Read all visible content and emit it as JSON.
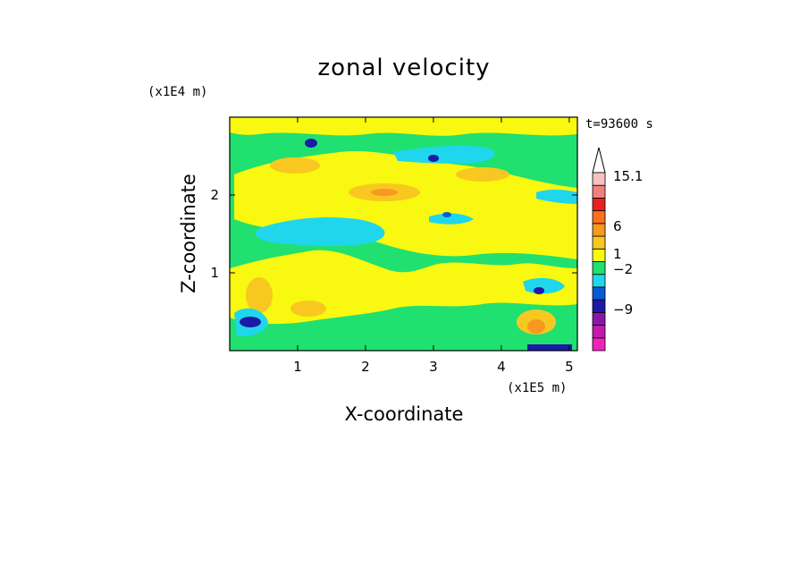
{
  "chart_data": {
    "type": "heatmap",
    "title": "zonal velocity",
    "xlabel": "X-coordinate",
    "ylabel": "Z-coordinate",
    "x_unit": "(x1E5 m)",
    "y_unit": "(x1E4 m)",
    "time_label": "t=93600 s",
    "xlim": [
      0,
      5.12
    ],
    "ylim": [
      0,
      3.0
    ],
    "xticks": [
      1,
      2,
      3,
      4,
      5
    ],
    "xtick_labels": [
      "1",
      "2",
      "3",
      "4",
      "5"
    ],
    "yticks": [
      1,
      2
    ],
    "ytick_labels": [
      "1",
      "2"
    ],
    "colorbar": {
      "levels": [
        {
          "color": "#ef23b9"
        },
        {
          "color": "#c21aac"
        },
        {
          "color": "#8a16a8"
        },
        {
          "color": "#1c1aa8"
        },
        {
          "color": "#0a5ad6"
        },
        {
          "color": "#20d6ec"
        },
        {
          "color": "#20e070"
        },
        {
          "color": "#f8f810"
        },
        {
          "color": "#f8c820"
        },
        {
          "color": "#f89820"
        },
        {
          "color": "#f87020"
        },
        {
          "color": "#e82020"
        },
        {
          "color": "#f08080"
        },
        {
          "color": "#f8c0c0"
        }
      ],
      "labels": [
        "15.1",
        "6",
        "1",
        "−2",
        "−9"
      ]
    },
    "features": [
      {
        "x": 1.85,
        "z": 1.75,
        "v": -3
      },
      {
        "x": 1.2,
        "z": 2.65,
        "v": -9
      },
      {
        "x": 0.4,
        "z": 0.4,
        "v": -9
      },
      {
        "x": 3.3,
        "z": 2.5,
        "v": -5
      },
      {
        "x": 4.6,
        "z": 0.8,
        "v": -6
      },
      {
        "x": 4.5,
        "z": 0.05,
        "v": -9
      },
      {
        "x": 1.2,
        "z": 2.35,
        "v": 4
      },
      {
        "x": 2.4,
        "z": 2.05,
        "v": 4
      },
      {
        "x": 4.4,
        "z": 0.35,
        "v": 5
      },
      {
        "x": 1.0,
        "z": 0.6,
        "v": 3
      }
    ]
  }
}
